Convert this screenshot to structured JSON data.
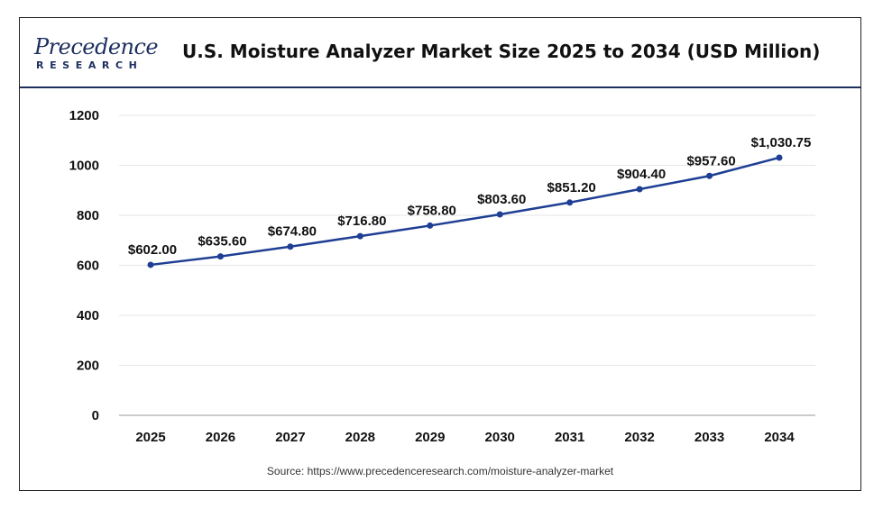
{
  "header": {
    "logo_top": "Precedence",
    "logo_bottom": "RESEARCH",
    "title": "U.S. Moisture Analyzer Market Size 2025 to 2034 (USD Million)"
  },
  "source": "Source: https://www.precedenceresearch.com/moisture-analyzer-market",
  "colors": {
    "line": "#1f3f94",
    "brand": "#1c2f5e",
    "grid": "#e6e6e6"
  },
  "chart_data": {
    "type": "line",
    "title": "U.S. Moisture Analyzer Market Size 2025 to 2034 (USD Million)",
    "xlabel": "",
    "ylabel": "",
    "ylim": [
      0,
      1200
    ],
    "yticks": [
      0,
      200,
      400,
      600,
      800,
      1000,
      1200
    ],
    "grid": true,
    "legend": "none",
    "categories": [
      "2025",
      "2026",
      "2027",
      "2028",
      "2029",
      "2030",
      "2031",
      "2032",
      "2033",
      "2034"
    ],
    "series": [
      {
        "values": [
          602.0,
          635.6,
          674.8,
          716.8,
          758.8,
          803.6,
          851.2,
          904.4,
          957.6,
          1030.75
        ],
        "labels": [
          "$602.00",
          "$635.60",
          "$674.80",
          "$716.80",
          "$758.80",
          "$803.60",
          "$851.20",
          "$904.40",
          "$957.60",
          "$1,030.75"
        ]
      }
    ]
  }
}
